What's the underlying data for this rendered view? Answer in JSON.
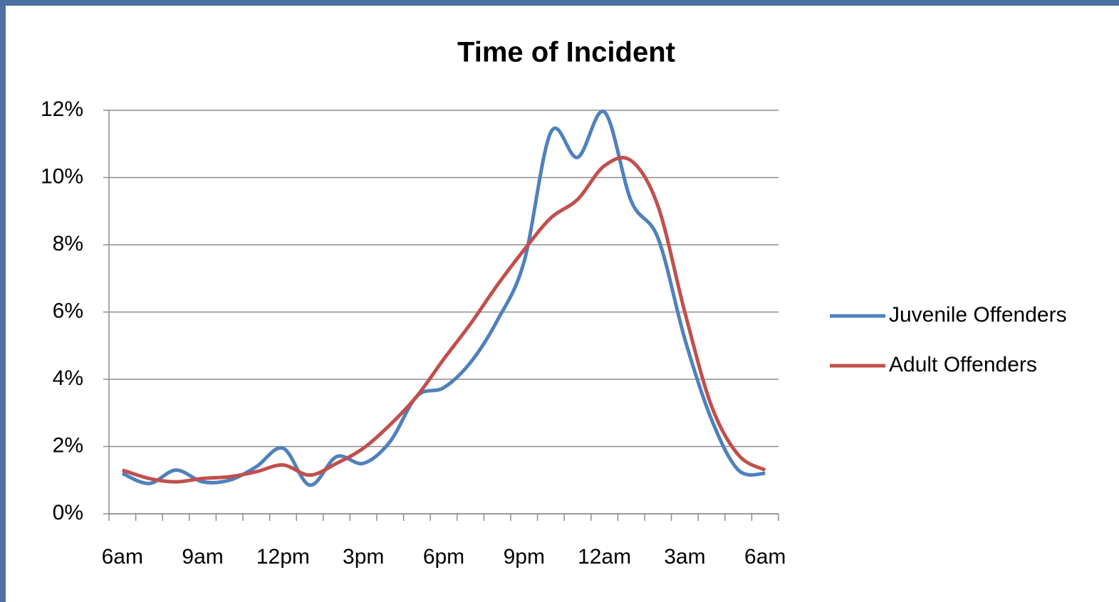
{
  "chart_data": {
    "type": "line",
    "title": "Time of Incident",
    "categories": [
      "6am",
      null,
      null,
      "9am",
      null,
      null,
      "12pm",
      null,
      null,
      "3pm",
      null,
      null,
      "6pm",
      null,
      null,
      "9pm",
      null,
      null,
      "12am",
      null,
      null,
      "3am",
      null,
      null,
      "6am"
    ],
    "series": [
      {
        "name": "Juvenile Offenders",
        "color": "#4f81bd",
        "values": [
          1.2,
          0.9,
          1.3,
          0.95,
          1.0,
          1.4,
          1.95,
          0.85,
          1.7,
          1.5,
          2.15,
          3.5,
          3.75,
          4.5,
          5.75,
          7.5,
          11.35,
          10.6,
          11.95,
          9.3,
          8.2,
          5.2,
          2.8,
          1.3,
          1.2
        ]
      },
      {
        "name": "Adult Offenders",
        "color": "#c0504d",
        "values": [
          1.3,
          1.05,
          0.95,
          1.05,
          1.1,
          1.25,
          1.45,
          1.15,
          1.5,
          1.95,
          2.65,
          3.5,
          4.6,
          5.65,
          6.8,
          7.85,
          8.8,
          9.35,
          10.35,
          10.5,
          9.15,
          6.0,
          3.2,
          1.75,
          1.3
        ]
      }
    ],
    "ylim": [
      0,
      12
    ],
    "yticks": [
      {
        "value": 0,
        "label": "0%"
      },
      {
        "value": 2,
        "label": "2%"
      },
      {
        "value": 4,
        "label": "4%"
      },
      {
        "value": 6,
        "label": "6%"
      },
      {
        "value": 8,
        "label": "8%"
      },
      {
        "value": 10,
        "label": "10%"
      },
      {
        "value": 12,
        "label": "12%"
      }
    ],
    "grid": true,
    "legend": "right"
  }
}
